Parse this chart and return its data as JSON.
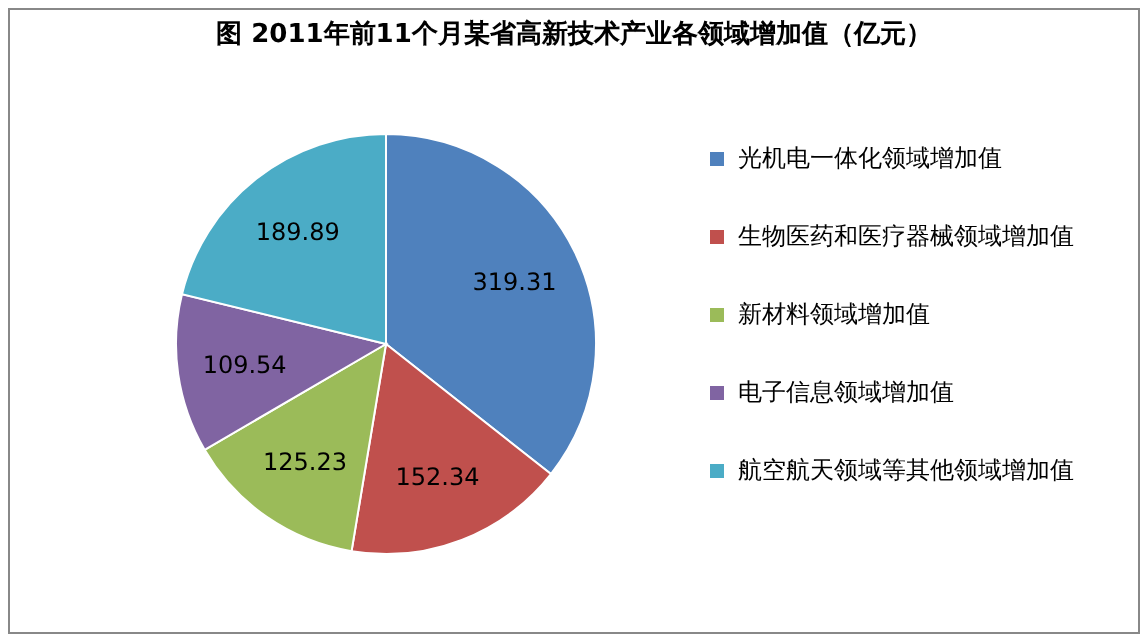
{
  "chart_data": {
    "type": "pie",
    "title": "图 2011年前11个月某省高新技术产业各领域增加值（亿元）",
    "categories": [
      "光机电一体化领域增加值",
      "生物医药和医疗器械领域增加值",
      "新材料领域增加值",
      "电子信息领域增加值",
      "航空航天领域等其他领域增加值"
    ],
    "values": [
      319.31,
      152.34,
      125.23,
      109.54,
      189.89
    ],
    "colors": [
      "#4f81bd",
      "#c0504d",
      "#9bbb59",
      "#8064a2",
      "#4bacc6"
    ],
    "data_labels": true,
    "legend": "right"
  }
}
